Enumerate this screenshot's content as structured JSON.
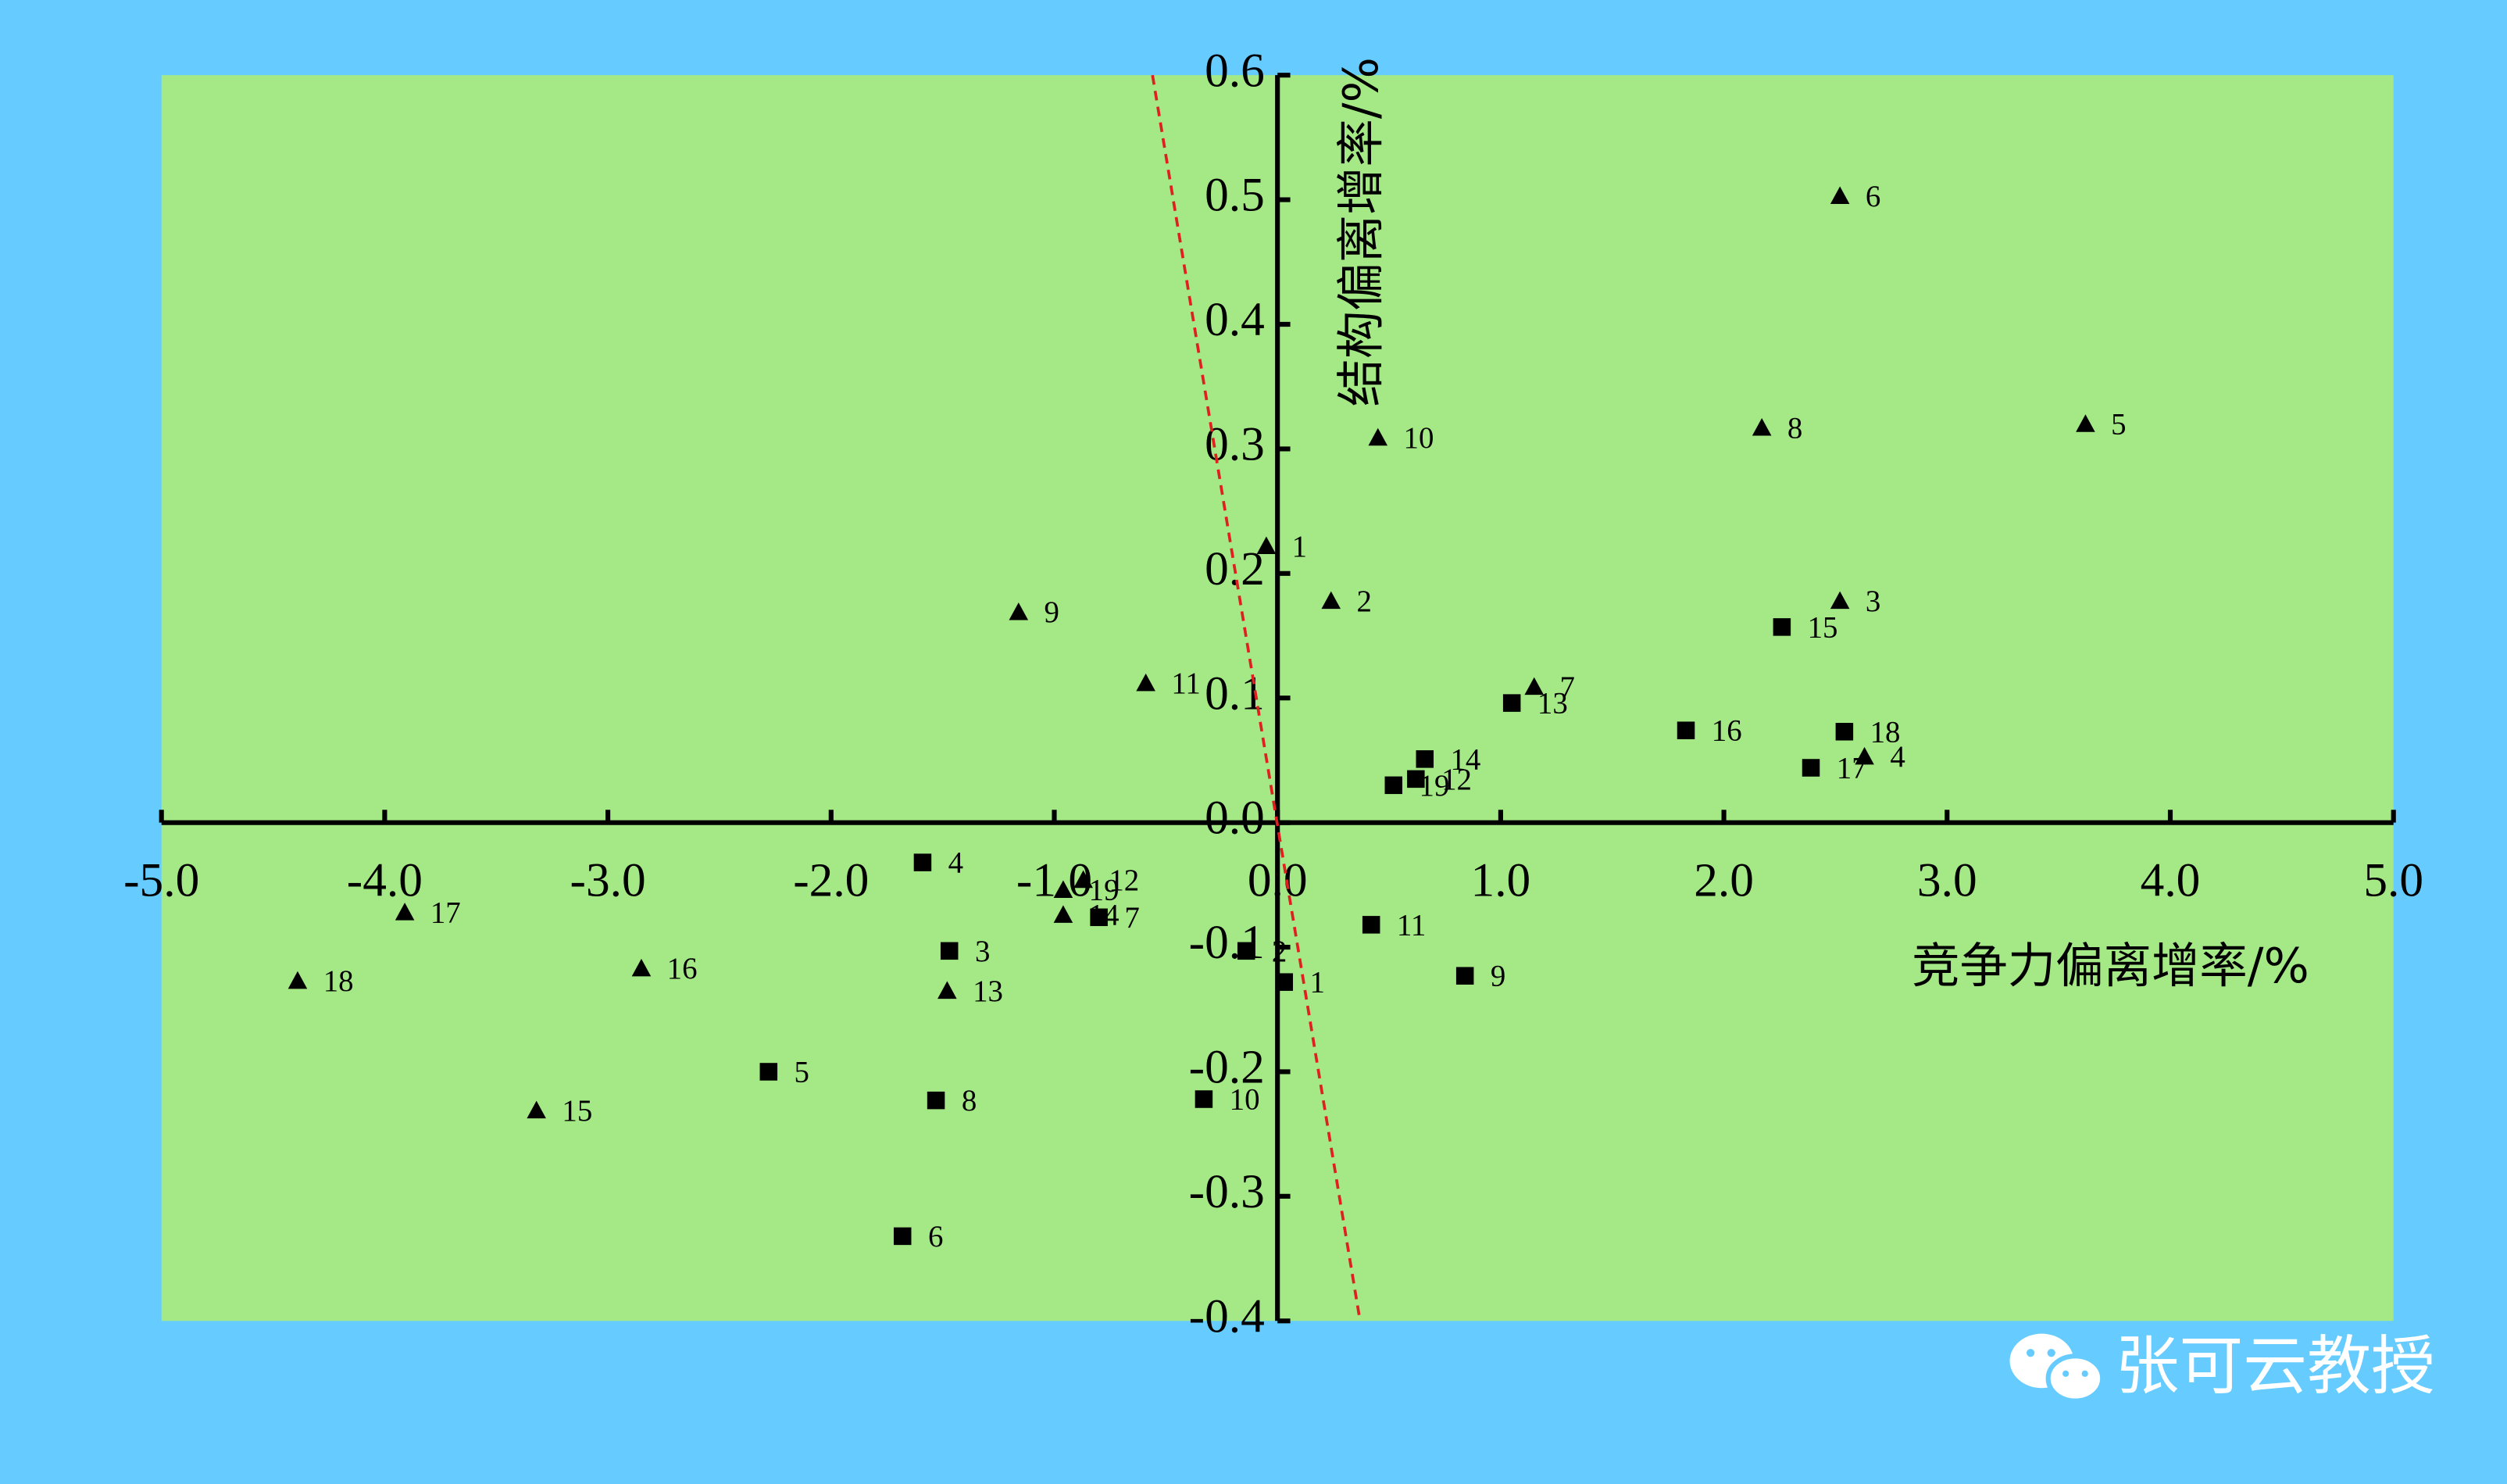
{
  "chart_data": {
    "type": "scatter",
    "x_label": "竞争力偏离增率/%",
    "y_label": "结构偏离增率/%",
    "watermark": "张可云教授",
    "xlim": [
      -5,
      5
    ],
    "ylim": [
      -0.4,
      0.6
    ],
    "xticks": [
      {
        "value": -5,
        "label": "-5.0"
      },
      {
        "value": -4,
        "label": "-4.0"
      },
      {
        "value": -3,
        "label": "-3.0"
      },
      {
        "value": -2,
        "label": "-2.0"
      },
      {
        "value": -1,
        "label": "-1.0"
      },
      {
        "value": 0,
        "label": "0.0"
      },
      {
        "value": 1,
        "label": "1.0"
      },
      {
        "value": 2,
        "label": "2.0"
      },
      {
        "value": 3,
        "label": "3.0"
      },
      {
        "value": 4,
        "label": "4.0"
      },
      {
        "value": 5,
        "label": "5.0"
      }
    ],
    "yticks": [
      -0.4,
      -0.3,
      -0.2,
      -0.1,
      {
        "value": 0,
        "label": "0.0"
      },
      0.1,
      0.2,
      0.3,
      0.4,
      0.5,
      0.6
    ],
    "trend_line": {
      "x": [
        -0.56,
        0.37
      ],
      "y": [
        0.6,
        -0.4
      ],
      "color": "#e02020"
    },
    "series": [
      {
        "marker": "triangle",
        "color": "#000000",
        "point_labels": [
          "6",
          "10",
          "8",
          "5",
          "1",
          "9",
          "2",
          "3",
          "11",
          "7",
          "4",
          "12",
          "19",
          "14",
          "17",
          "16",
          "18",
          "13",
          "15"
        ],
        "x": [
          2.52,
          0.45,
          2.17,
          3.62,
          -0.05,
          -1.16,
          0.24,
          2.52,
          -0.59,
          1.15,
          2.63,
          -0.87,
          -0.96,
          -0.96,
          -3.91,
          -2.85,
          -4.39,
          -1.48,
          -3.32
        ],
        "values": [
          0.503,
          0.309,
          0.317,
          0.32,
          0.222,
          0.169,
          0.178,
          0.178,
          0.112,
          0.109,
          0.053,
          -0.046,
          -0.054,
          -0.074,
          -0.072,
          -0.117,
          -0.127,
          -0.135,
          -0.231
        ]
      },
      {
        "marker": "square",
        "color": "#000000",
        "point_labels": [
          "15",
          "16",
          "18",
          "13",
          "14",
          "12",
          "19",
          "17",
          "4",
          "7",
          "2",
          "3",
          "11",
          "1",
          "9",
          "5",
          "8",
          "10",
          "6"
        ],
        "x": [
          2.26,
          1.83,
          2.54,
          1.05,
          0.66,
          0.62,
          0.52,
          2.39,
          -1.59,
          -0.8,
          -0.14,
          -1.47,
          0.42,
          0.03,
          0.84,
          -2.28,
          -1.53,
          -0.33,
          -1.68
        ],
        "values": [
          0.157,
          0.074,
          0.073,
          0.096,
          0.051,
          0.035,
          0.03,
          0.044,
          -0.032,
          -0.076,
          -0.103,
          -0.103,
          -0.082,
          -0.128,
          -0.123,
          -0.2,
          -0.223,
          -0.222,
          -0.332
        ]
      }
    ]
  }
}
